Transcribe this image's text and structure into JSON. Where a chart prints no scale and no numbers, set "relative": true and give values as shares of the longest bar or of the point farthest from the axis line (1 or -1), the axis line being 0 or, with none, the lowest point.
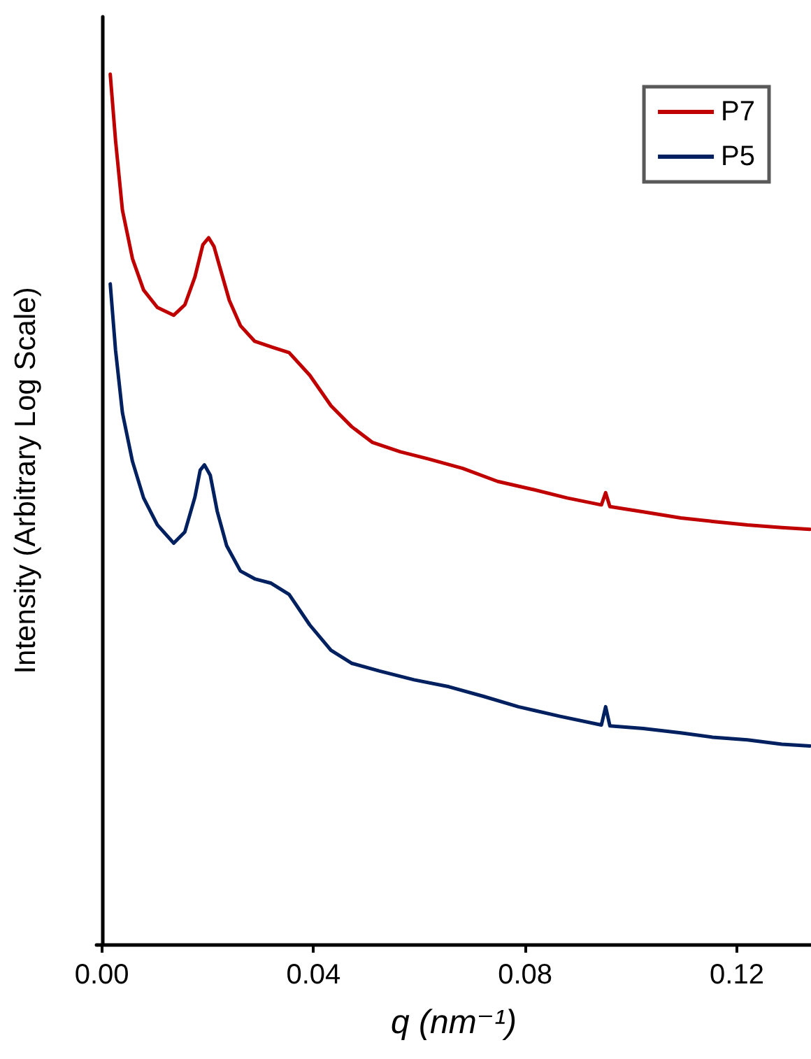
{
  "chart_data": {
    "type": "line",
    "relative": true,
    "xlabel": "q (nm⁻¹)",
    "ylabel": "Intensity (Arbitrary Log Scale)",
    "xlim": [
      -0.001,
      0.134
    ],
    "xticks": [
      {
        "value": 0,
        "label": "0.00"
      },
      {
        "value": 0.04,
        "label": "0.04"
      },
      {
        "value": 0.08,
        "label": "0.08"
      },
      {
        "value": 0.12,
        "label": "0.12"
      }
    ],
    "legend": "top right",
    "marker": "none",
    "line_style": "solid",
    "series": [
      {
        "name": "P7",
        "color": "#c00000",
        "x": [
          0.0016,
          0.0026,
          0.0039,
          0.0058,
          0.0079,
          0.0105,
          0.0136,
          0.0157,
          0.0176,
          0.0191,
          0.0202,
          0.0212,
          0.0226,
          0.0241,
          0.0262,
          0.0289,
          0.0323,
          0.0354,
          0.0393,
          0.0433,
          0.0472,
          0.0511,
          0.0564,
          0.0616,
          0.0682,
          0.0748,
          0.0813,
          0.0879,
          0.0944,
          0.0952,
          0.096,
          0.1023,
          0.1094,
          0.1154,
          0.122,
          0.1285,
          0.1338
        ],
        "values": [
          1.0,
          0.924,
          0.844,
          0.788,
          0.752,
          0.732,
          0.723,
          0.735,
          0.767,
          0.804,
          0.812,
          0.802,
          0.772,
          0.74,
          0.711,
          0.693,
          0.686,
          0.68,
          0.654,
          0.619,
          0.595,
          0.577,
          0.566,
          0.558,
          0.547,
          0.532,
          0.523,
          0.513,
          0.505,
          0.519,
          0.503,
          0.497,
          0.49,
          0.486,
          0.482,
          0.479,
          0.477
        ]
      },
      {
        "name": "P5",
        "color": "#002060",
        "x": [
          0.0016,
          0.0026,
          0.0039,
          0.0058,
          0.0079,
          0.0105,
          0.0136,
          0.0157,
          0.0176,
          0.0186,
          0.0194,
          0.0205,
          0.0218,
          0.0236,
          0.0262,
          0.0289,
          0.032,
          0.0354,
          0.0393,
          0.0433,
          0.0472,
          0.0525,
          0.059,
          0.0656,
          0.0721,
          0.0787,
          0.0866,
          0.0944,
          0.0952,
          0.096,
          0.1023,
          0.1094,
          0.1154,
          0.122,
          0.1285,
          0.1338
        ],
        "values": [
          0.759,
          0.683,
          0.611,
          0.555,
          0.513,
          0.482,
          0.461,
          0.474,
          0.514,
          0.545,
          0.551,
          0.539,
          0.498,
          0.458,
          0.429,
          0.42,
          0.415,
          0.402,
          0.367,
          0.338,
          0.323,
          0.314,
          0.304,
          0.296,
          0.285,
          0.273,
          0.262,
          0.252,
          0.273,
          0.251,
          0.248,
          0.243,
          0.238,
          0.235,
          0.23,
          0.228
        ]
      }
    ]
  }
}
